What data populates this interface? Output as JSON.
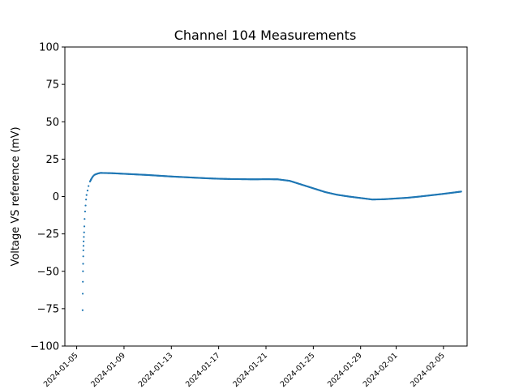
{
  "chart_data": {
    "type": "scatter",
    "title": "Channel 104 Measurements",
    "xlabel": "",
    "ylabel": "Voltage VS reference (mV)",
    "x_axis_type": "date",
    "xlim": [
      "2024-01-04",
      "2024-02-07"
    ],
    "ylim": [
      -100,
      100
    ],
    "y_ticks": [
      -100,
      -75,
      -50,
      -25,
      0,
      25,
      50,
      75,
      100
    ],
    "x_ticks": [
      "2024-01-05",
      "2024-01-09",
      "2024-01-13",
      "2024-01-17",
      "2024-01-21",
      "2024-01-25",
      "2024-01-29",
      "2024-02-01",
      "2024-02-05"
    ],
    "grid": false,
    "legend": "none",
    "marker_color": "#1f77b4",
    "series": [
      {
        "x": [
          "2024-01-05 12:00",
          "2024-01-05 12:15",
          "2024-01-05 12:30",
          "2024-01-05 12:45",
          "2024-01-05 13:00",
          "2024-01-05 13:15",
          "2024-01-05 13:30",
          "2024-01-05 13:45",
          "2024-01-05 14:00",
          "2024-01-05 14:30",
          "2024-01-05 15:00",
          "2024-01-05 15:30",
          "2024-01-05 16:00",
          "2024-01-05 17:00",
          "2024-01-05 18:00",
          "2024-01-05 19:00",
          "2024-01-05 20:00",
          "2024-01-05 22:00",
          "2024-01-06 00:00",
          "2024-01-06 03:00",
          "2024-01-06 06:00",
          "2024-01-06 09:00",
          "2024-01-06 12:00",
          "2024-01-06 18:00",
          "2024-01-07 00:00",
          "2024-01-08 00:00",
          "2024-01-09 00:00",
          "2024-01-10 00:00",
          "2024-01-11 00:00",
          "2024-01-12 00:00",
          "2024-01-13 00:00",
          "2024-01-14 00:00",
          "2024-01-15 00:00",
          "2024-01-16 00:00",
          "2024-01-17 00:00",
          "2024-01-18 00:00",
          "2024-01-19 00:00",
          "2024-01-20 00:00",
          "2024-01-21 00:00",
          "2024-01-22 00:00",
          "2024-01-23 00:00",
          "2024-01-24 00:00",
          "2024-01-25 00:00",
          "2024-01-26 00:00",
          "2024-01-27 00:00",
          "2024-01-28 00:00",
          "2024-01-29 00:00",
          "2024-01-30 00:00",
          "2024-01-31 00:00",
          "2024-02-01 00:00",
          "2024-02-02 00:00",
          "2024-02-03 00:00",
          "2024-02-04 00:00",
          "2024-02-05 00:00",
          "2024-02-06 00:00",
          "2024-02-06 12:00"
        ],
        "y": [
          -76,
          -65,
          -57,
          -50,
          -45,
          -40,
          -36,
          -33,
          -30,
          -27,
          -24,
          -20,
          -15,
          -10,
          -6,
          -2,
          1,
          4,
          7,
          10,
          12,
          13.5,
          14.5,
          15.3,
          15.8,
          15.6,
          15.2,
          14.8,
          14.4,
          13.9,
          13.4,
          13.0,
          12.6,
          12.2,
          11.9,
          11.7,
          11.6,
          11.5,
          11.6,
          11.5,
          10.5,
          8.0,
          5.5,
          3.0,
          1.2,
          0.0,
          -1.0,
          -2.0,
          -1.8,
          -1.3,
          -0.8,
          0.0,
          0.9,
          1.8,
          2.8,
          3.3
        ]
      }
    ]
  }
}
